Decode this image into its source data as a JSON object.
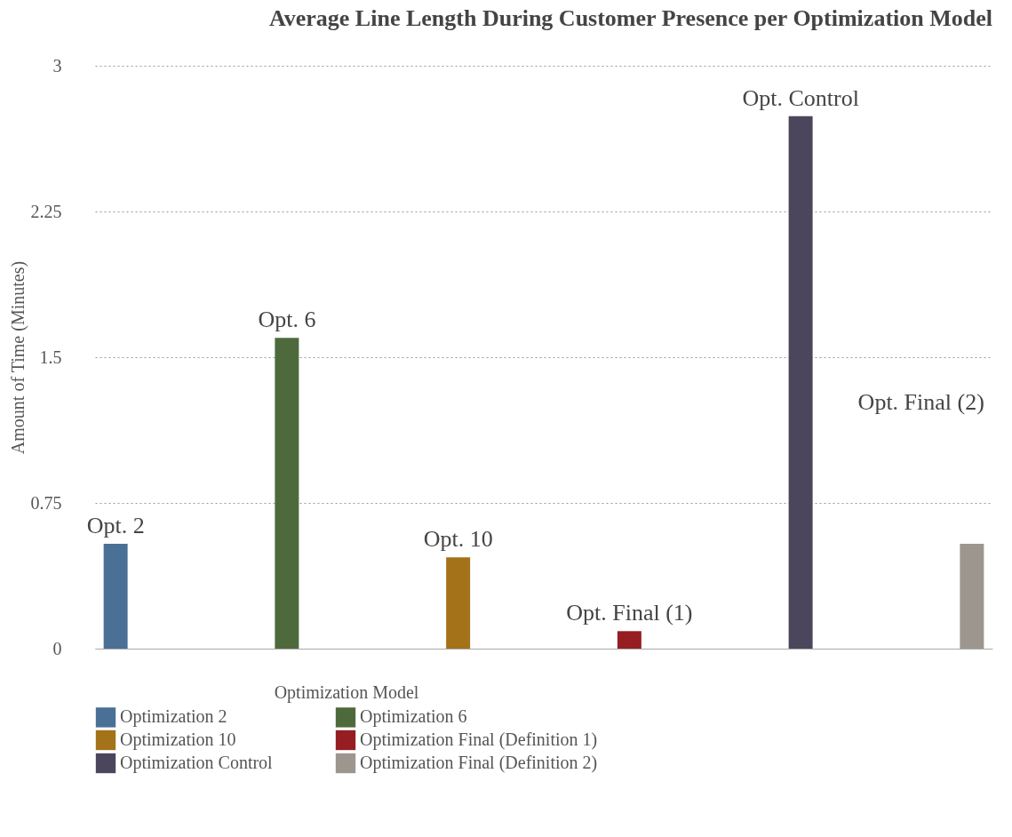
{
  "chart_data": {
    "type": "bar",
    "title": "Average Line Length During Customer Presence per Optimization Model",
    "ylabel": "Amount of Time (Minutes)",
    "legend_title": "Optimization Model",
    "categories": [
      null,
      null,
      null,
      null,
      null,
      null
    ],
    "series": [
      {
        "name": "Optimization 2",
        "color": "#4b7096",
        "values": [
          0.54,
          null,
          null,
          null,
          null,
          null
        ]
      },
      {
        "name": "Optimization 6",
        "color": "#4e6a3c",
        "values": [
          null,
          1.6,
          null,
          null,
          null,
          null
        ]
      },
      {
        "name": "Optimization 10",
        "color": "#a37219",
        "values": [
          null,
          null,
          0.47,
          null,
          null,
          null
        ]
      },
      {
        "name": "Optimization Final (Definition 1)",
        "color": "#961e22",
        "values": [
          null,
          null,
          null,
          0.09,
          null,
          null
        ]
      },
      {
        "name": "Optimization Control",
        "color": "#4b465c",
        "values": [
          null,
          null,
          null,
          null,
          2.74,
          null
        ]
      },
      {
        "name": "Optimization Final (Definition 2)",
        "color": "#9c968f",
        "values": [
          null,
          null,
          null,
          null,
          null,
          0.54
        ]
      }
    ],
    "annotations": [
      "Opt. 2",
      "Opt. 6",
      "Opt. 10",
      "Opt. Final (1)",
      "Opt. Control",
      "Opt. Final (2)"
    ],
    "ylim": [
      0,
      3
    ],
    "yticks": [
      0,
      0.75,
      1.5,
      2.25,
      3
    ],
    "grid": "y",
    "legend": "bottom",
    "tick_labels": "y"
  }
}
